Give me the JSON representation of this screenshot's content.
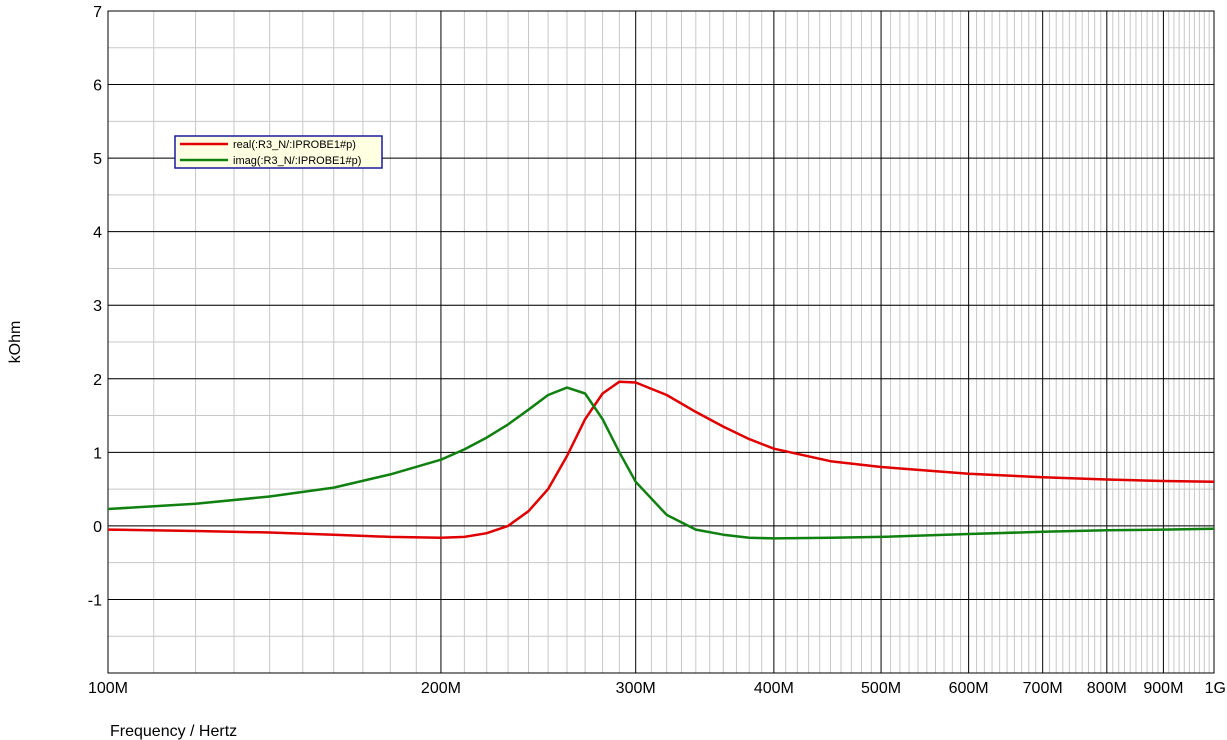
{
  "chart_data": {
    "type": "line",
    "xlabel": "Frequency / Hertz",
    "ylabel": "kOhm",
    "xscale": "log",
    "grid": true,
    "xlim": [
      100000000,
      1000000000
    ],
    "xticks": [
      {
        "value": 100000000,
        "label": "100M"
      },
      {
        "value": 200000000,
        "label": "200M"
      },
      {
        "value": 300000000,
        "label": "300M"
      },
      {
        "value": 400000000,
        "label": "400M"
      },
      {
        "value": 500000000,
        "label": "500M"
      },
      {
        "value": 600000000,
        "label": "600M"
      },
      {
        "value": 700000000,
        "label": "700M"
      },
      {
        "value": 800000000,
        "label": "800M"
      },
      {
        "value": 900000000,
        "label": "900M"
      },
      {
        "value": 1000000000,
        "label": "1G"
      }
    ],
    "ylim": [
      -2,
      7
    ],
    "yticks": [
      -1,
      0,
      1,
      2,
      3,
      4,
      5,
      6,
      7
    ],
    "x": [
      100000000,
      120000000,
      140000000,
      160000000,
      180000000,
      200000000,
      210000000,
      220000000,
      230000000,
      240000000,
      250000000,
      260000000,
      270000000,
      280000000,
      290000000,
      300000000,
      320000000,
      340000000,
      360000000,
      380000000,
      400000000,
      450000000,
      500000000,
      600000000,
      700000000,
      800000000,
      900000000,
      1000000000
    ],
    "series": [
      {
        "name": "real(:R3_N/:IPROBE1#p)",
        "color": "#e00000",
        "values": [
          -0.05,
          -0.07,
          -0.09,
          -0.12,
          -0.15,
          -0.16,
          -0.15,
          -0.1,
          0.0,
          0.2,
          0.5,
          0.95,
          1.45,
          1.8,
          1.96,
          1.95,
          1.78,
          1.55,
          1.35,
          1.18,
          1.05,
          0.88,
          0.8,
          0.71,
          0.66,
          0.63,
          0.61,
          0.6
        ]
      },
      {
        "name": "imag(:R3_N/:IPROBE1#p)",
        "color": "#108010",
        "values": [
          0.23,
          0.3,
          0.4,
          0.52,
          0.7,
          0.9,
          1.04,
          1.2,
          1.38,
          1.58,
          1.78,
          1.88,
          1.8,
          1.45,
          1.0,
          0.6,
          0.15,
          -0.05,
          -0.12,
          -0.16,
          -0.17,
          -0.16,
          -0.15,
          -0.11,
          -0.08,
          -0.06,
          -0.05,
          -0.04
        ]
      }
    ]
  }
}
